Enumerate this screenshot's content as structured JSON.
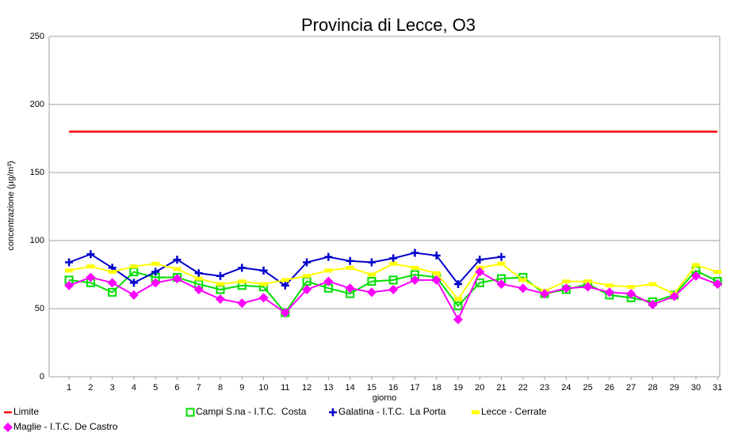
{
  "chart_data": {
    "type": "line",
    "title": "Provincia di Lecce, O3",
    "x_label": "giorno",
    "y_label": "concentrazione (µg/m³)",
    "x": [
      1,
      2,
      3,
      4,
      5,
      6,
      7,
      8,
      9,
      10,
      11,
      12,
      13,
      14,
      15,
      16,
      17,
      18,
      19,
      20,
      21,
      22,
      23,
      24,
      25,
      26,
      27,
      28,
      29,
      30,
      31
    ],
    "xlim": [
      0.08,
      31.1
    ],
    "ylim": [
      0,
      250
    ],
    "yticks": [
      0,
      50,
      100,
      150,
      200,
      250
    ],
    "grid": true,
    "legend": "bottom",
    "series": [
      {
        "name": "Limite",
        "color": "#ff0000",
        "marker": "none",
        "values": [
          180,
          180,
          180,
          180,
          180,
          180,
          180,
          180,
          180,
          180,
          180,
          180,
          180,
          180,
          180,
          180,
          180,
          180,
          180,
          180,
          180,
          180,
          180,
          180,
          180,
          180,
          180,
          180,
          180,
          180,
          180
        ]
      },
      {
        "name": "Campi S.na - I.T.C.  Costa",
        "color": "#00dd00",
        "marker": "square",
        "values": [
          71,
          69,
          62,
          77,
          73,
          73,
          68,
          64,
          67,
          66,
          47,
          70,
          65,
          61,
          70,
          71,
          75,
          73,
          52,
          69,
          72,
          73,
          61,
          64,
          68,
          60,
          58,
          55,
          60,
          78,
          70
        ]
      },
      {
        "name": "Galatina - I.T.C.  La Porta",
        "color": "#0000cc",
        "marker": "plus",
        "values": [
          84,
          90,
          80,
          69,
          77,
          86,
          76,
          74,
          80,
          78,
          67,
          84,
          88,
          85,
          84,
          87,
          91,
          89,
          68,
          86,
          88,
          null,
          null,
          null,
          null,
          null,
          null,
          null,
          null,
          null,
          null
        ]
      },
      {
        "name": "Lecce - Cerrate",
        "color": "#ffff00",
        "marker": "dash",
        "values": [
          78,
          81,
          77,
          81,
          83,
          79,
          72,
          68,
          70,
          68,
          71,
          74,
          78,
          80,
          75,
          83,
          80,
          76,
          57,
          80,
          83,
          71,
          63,
          70,
          70,
          67,
          66,
          68,
          61,
          82,
          77
        ]
      },
      {
        "name": "Maglie - I.T.C. De Castro",
        "color": "#ff00ff",
        "marker": "diamond",
        "values": [
          67,
          73,
          69,
          60,
          69,
          72,
          64,
          57,
          54,
          58,
          47,
          64,
          70,
          65,
          62,
          64,
          71,
          71,
          42,
          77,
          68,
          65,
          61,
          65,
          66,
          62,
          61,
          53,
          59,
          74,
          68
        ]
      }
    ]
  }
}
